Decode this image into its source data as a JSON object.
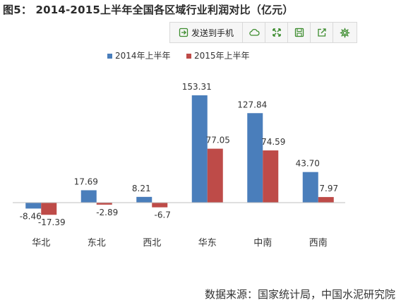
{
  "figure_title": "图5： 2014-2015上半年全国各区域行业利润对比（亿元）",
  "toolbar": {
    "send_label": "发送到手机",
    "icons": [
      "send-phone-icon",
      "cloud-icon",
      "expand-icon",
      "save-icon",
      "share-icon",
      "settings-icon"
    ]
  },
  "source": "数据来源：国家统计局，中国水泥研究院",
  "chart_data": {
    "type": "bar",
    "categories": [
      "华北",
      "东北",
      "西北",
      "华东",
      "中南",
      "西南"
    ],
    "series": [
      {
        "name": "2014年上半年",
        "color": "#4a7ebb",
        "values": [
          -8.46,
          17.69,
          8.21,
          153.31,
          127.84,
          43.7
        ],
        "labels": [
          "-8.46",
          "17.69",
          "8.21",
          "153.31",
          "127.84",
          "43.70"
        ]
      },
      {
        "name": "2015年上半年",
        "color": "#be4b48",
        "values": [
          -17.39,
          -2.89,
          -6.7,
          77.05,
          74.59,
          7.97
        ],
        "labels": [
          "-17.39",
          "-2.89",
          "-6.7",
          "77.05",
          "74.59",
          "7.97"
        ]
      }
    ],
    "ylim": [
      -20,
      160
    ],
    "legend_position": "top",
    "grid": false,
    "xlabel": "",
    "ylabel": ""
  }
}
